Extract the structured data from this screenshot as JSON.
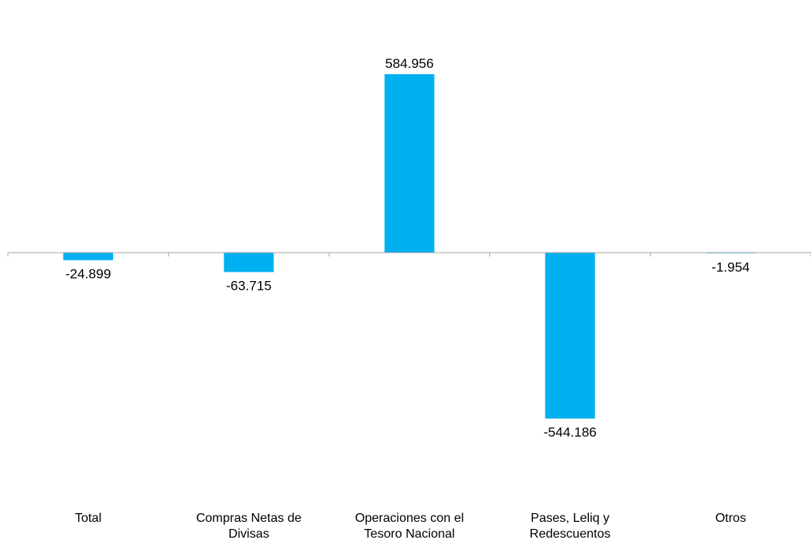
{
  "chart_data": {
    "type": "bar",
    "title": "",
    "xlabel": "",
    "ylabel": "",
    "categories": [
      [
        "Total"
      ],
      [
        "Compras Netas de",
        "Divisas"
      ],
      [
        "Operaciones con el",
        "Tesoro Nacional"
      ],
      [
        "Pases, Leliq y",
        "Redescuentos"
      ],
      [
        "Otros"
      ]
    ],
    "values": [
      -24.899,
      -63.715,
      584.956,
      -544.186,
      -1.954
    ],
    "value_labels": [
      "-24.899",
      "-63.715",
      "584.956",
      "-544.186",
      "-1.954"
    ],
    "ylim": [
      -800,
      800
    ],
    "grid": false,
    "legend": "none",
    "bar_color": "#00B0F0",
    "axis_color": "#A6A6A6"
  }
}
